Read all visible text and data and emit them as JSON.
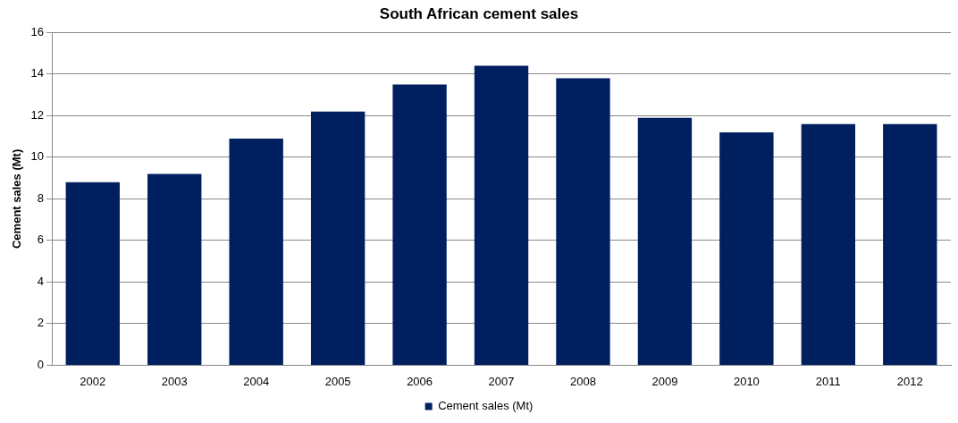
{
  "chart_data": {
    "type": "bar",
    "title": "South African cement sales",
    "ylabel": "Cement sales (Mt)",
    "categories": [
      "2002",
      "2003",
      "2004",
      "2005",
      "2006",
      "2007",
      "2008",
      "2009",
      "2010",
      "2011",
      "2012"
    ],
    "series": [
      {
        "name": "Cement sales (Mt)",
        "color": "#001f5f",
        "values": [
          8.8,
          9.2,
          10.9,
          12.2,
          13.5,
          14.4,
          13.8,
          11.9,
          11.2,
          11.6,
          11.6
        ]
      }
    ],
    "ylim": [
      0,
      16
    ],
    "yticks": [
      0,
      2,
      4,
      6,
      8,
      10,
      12,
      14,
      16
    ],
    "grid": "y",
    "legend": "bottom"
  }
}
